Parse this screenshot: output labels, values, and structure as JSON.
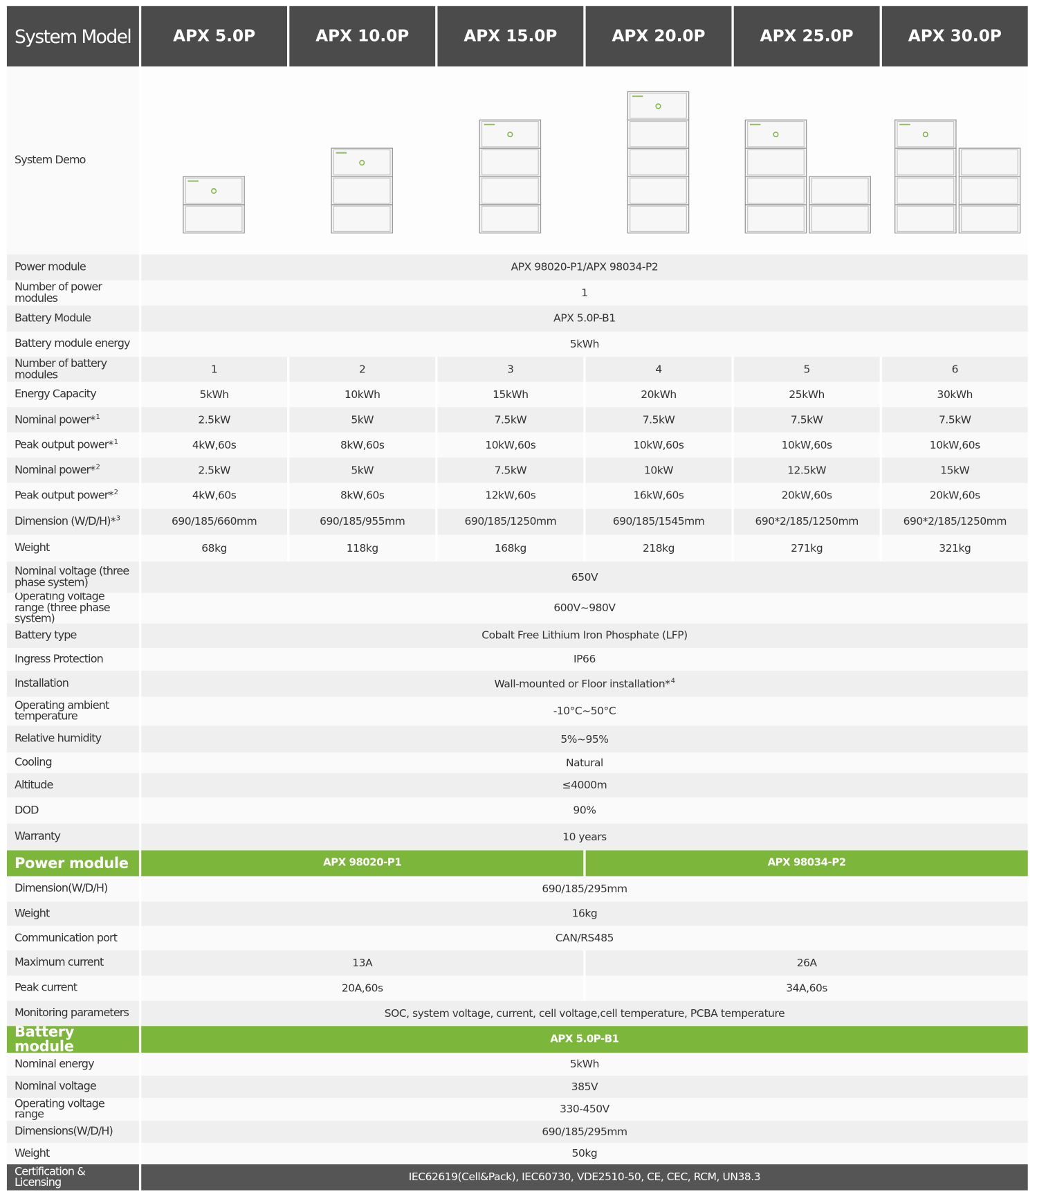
{
  "header": {
    "label": "System Model",
    "models": [
      "APX 5.0P",
      "APX 10.0P",
      "APX 15.0P",
      "APX 20.0P",
      "APX 25.0P",
      "APX 30.0P"
    ]
  },
  "demo": {
    "label": "System Demo"
  },
  "specs": [
    {
      "label": "Power module",
      "value": "APX 98020-P1/APX 98034-P2"
    },
    {
      "label": "Number of power modules",
      "value": "1"
    },
    {
      "label": "Battery Module",
      "value": "APX 5.0P-B1"
    },
    {
      "label": "Battery module energy",
      "value": "5kWh"
    },
    {
      "label": "Number of battery modules",
      "values": [
        "1",
        "2",
        "3",
        "4",
        "5",
        "6"
      ]
    },
    {
      "label": "Energy Capacity",
      "values": [
        "5kWh",
        "10kWh",
        "15kWh",
        "20kWh",
        "25kWh",
        "30kWh"
      ]
    },
    {
      "label": "Nominal power*",
      "note": "1",
      "values": [
        "2.5kW",
        "5kW",
        "7.5kW",
        "7.5kW",
        "7.5kW",
        "7.5kW"
      ]
    },
    {
      "label": "Peak output power*",
      "note": "1",
      "values": [
        "4kW,60s",
        "8kW,60s",
        "10kW,60s",
        "10kW,60s",
        "10kW,60s",
        "10kW,60s"
      ]
    },
    {
      "label": "Nominal power*",
      "note": "2",
      "values": [
        "2.5kW",
        "5kW",
        "7.5kW",
        "10kW",
        "12.5kW",
        "15kW"
      ]
    },
    {
      "label": "Peak output power*",
      "note": "2",
      "values": [
        "4kW,60s",
        "8kW,60s",
        "12kW,60s",
        "16kW,60s",
        "20kW,60s",
        "20kW,60s"
      ]
    },
    {
      "label": "Dimension (W/D/H)*",
      "note": "3",
      "values": [
        "690/185/660mm",
        "690/185/955mm",
        "690/185/1250mm",
        "690/185/1545mm",
        "690*2/185/1250mm",
        "690*2/185/1250mm"
      ]
    },
    {
      "label": "Weight",
      "values": [
        "68kg",
        "118kg",
        "168kg",
        "218kg",
        "271kg",
        "321kg"
      ]
    },
    {
      "label": "Nominal voltage (three phase system)",
      "value": "650V"
    },
    {
      "label": "Operating voltage range (three phase system)",
      "value": "600V~980V"
    },
    {
      "label": "Battery type",
      "value": "Cobalt Free Lithium Iron Phosphate (LFP)"
    },
    {
      "label": "Ingress Protection",
      "value": "IP66"
    },
    {
      "label": "Installation",
      "value": "Wall-mounted or Floor installation*",
      "value_note": "4"
    },
    {
      "label": "Operating ambient temperature",
      "value": "-10°C~50°C"
    },
    {
      "label": "Relative humidity",
      "value": "5%~95%"
    },
    {
      "label": "Cooling",
      "value": "Natural"
    },
    {
      "label": "Altitude",
      "value": "≤4000m"
    },
    {
      "label": "DOD",
      "value": "90%"
    },
    {
      "label": "Warranty",
      "value": "10 years"
    }
  ],
  "power_module": {
    "title": "Power module",
    "models": [
      "APX 98020-P1",
      "APX 98034-P2"
    ],
    "rows": [
      {
        "label": "Dimension(W/D/H)",
        "value": "690/185/295mm"
      },
      {
        "label": "Weight",
        "value": "16kg"
      },
      {
        "label": "Communication port",
        "value": "CAN/RS485"
      },
      {
        "label": "Maximum current",
        "values": [
          "13A",
          "26A"
        ]
      },
      {
        "label": "Peak current",
        "values": [
          "20A,60s",
          "34A,60s"
        ]
      },
      {
        "label": "Monitoring parameters",
        "value": "SOC, system voltage, current, cell voltage,cell temperature, PCBA temperature"
      }
    ]
  },
  "battery_module": {
    "title": "Battery module",
    "models": [
      "APX 5.0P-B1"
    ],
    "rows": [
      {
        "label": "Nominal energy",
        "value": "5kWh"
      },
      {
        "label": "Nominal voltage",
        "value": "385V"
      },
      {
        "label": "Operating voltage range",
        "value": "330-450V"
      },
      {
        "label": "Dimensions(W/D/H)",
        "value": "690/185/295mm"
      },
      {
        "label": "Weight",
        "value": "50kg"
      }
    ]
  },
  "certification": {
    "label": "Certification & Licensing",
    "value": "IEC62619(Cell&Pack), IEC60730, VDE2510-50, CE, CEC, RCM, UN38.3"
  }
}
